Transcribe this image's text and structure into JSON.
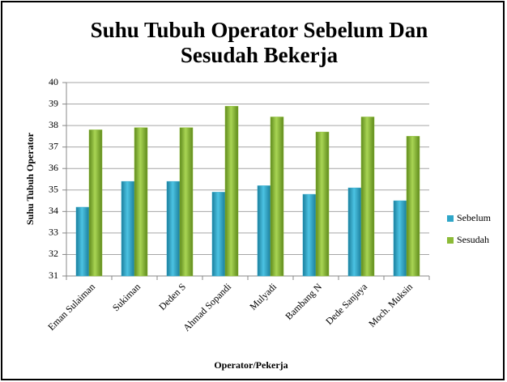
{
  "chart_data": {
    "type": "bar",
    "title": "Suhu Tubuh Operator Sebelum Dan Sesudah Bekerja",
    "x_label": "Operator/Pekerja",
    "y_label": "Suhu Tubuh Operator",
    "categories": [
      "Eman Sulaiman",
      "Sukiman",
      "Deden S",
      "Ahmad Sopandi",
      "Mulyadi",
      "Bambang N",
      "Dede Sanjaya",
      "Moch. Muksin"
    ],
    "series": [
      {
        "name": "Sebelum",
        "color": "#2fa6c8",
        "values": [
          34.2,
          35.4,
          35.4,
          34.9,
          35.2,
          34.8,
          35.1,
          34.5
        ]
      },
      {
        "name": "Sesudah",
        "color": "#8cbb37",
        "values": [
          37.8,
          37.9,
          37.9,
          38.9,
          38.4,
          37.7,
          38.4,
          37.5
        ]
      }
    ],
    "ylim": [
      31,
      40
    ],
    "yticks": [
      31,
      32,
      33,
      34,
      35,
      36,
      37,
      38,
      39,
      40
    ],
    "grid": true,
    "legend": "right"
  }
}
